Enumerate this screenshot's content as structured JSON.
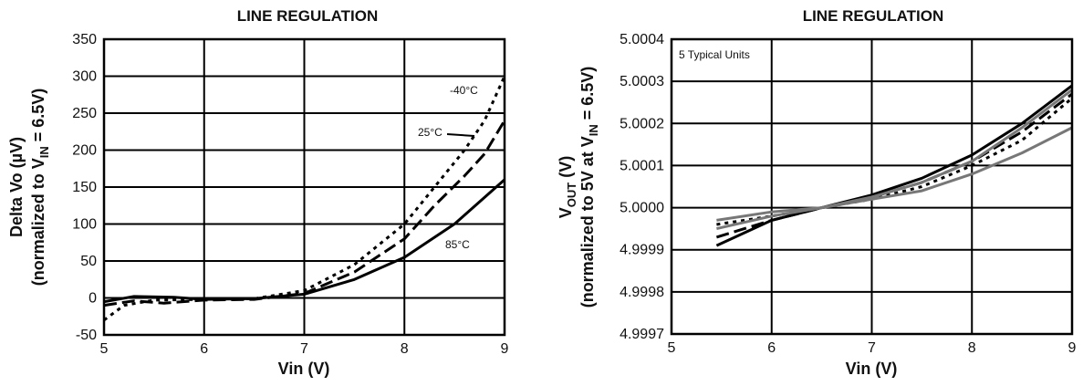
{
  "chart_data": [
    {
      "type": "line",
      "title": "LINE REGULATION",
      "xlabel": "Vin (V)",
      "ylabel_line1": "Delta Vo (µV)",
      "ylabel_line2_pre": "(normalized to V",
      "ylabel_line2_sub": "IN",
      "ylabel_line2_post": " = 6.5V)",
      "xlim": [
        5,
        9
      ],
      "ylim": [
        -50,
        350
      ],
      "xticks": [
        "5",
        "6",
        "7",
        "8",
        "9"
      ],
      "yticks": [
        "350",
        "300",
        "250",
        "200",
        "150",
        "100",
        "50",
        "0",
        "-50"
      ],
      "xtick_values": [
        5,
        6,
        7,
        8,
        9
      ],
      "ytick_values": [
        350,
        300,
        250,
        200,
        150,
        100,
        50,
        0,
        -50
      ],
      "grid": true,
      "annotations": [
        "-40°C",
        "25°C",
        "85°C"
      ],
      "series": [
        {
          "name": "-40°C",
          "style": "dotted",
          "x": [
            5.0,
            5.2,
            5.5,
            6.0,
            6.5,
            7.0,
            7.5,
            8.0,
            8.3,
            8.6,
            8.8,
            9.0
          ],
          "y": [
            -30,
            -10,
            -3,
            -2,
            -1,
            10,
            45,
            100,
            150,
            200,
            240,
            300
          ]
        },
        {
          "name": "25°C",
          "style": "dashed",
          "x": [
            5.0,
            5.3,
            5.6,
            6.0,
            6.5,
            7.0,
            7.5,
            8.0,
            8.3,
            8.6,
            8.8,
            9.0
          ],
          "y": [
            -10,
            -4,
            -7,
            -3,
            -2,
            6,
            35,
            80,
            125,
            165,
            195,
            240
          ]
        },
        {
          "name": "85°C",
          "style": "solid",
          "x": [
            5.0,
            5.3,
            5.7,
            6.0,
            6.5,
            7.0,
            7.5,
            8.0,
            8.5,
            9.0
          ],
          "y": [
            -5,
            2,
            1,
            -2,
            -1,
            5,
            25,
            55,
            100,
            160
          ]
        }
      ]
    },
    {
      "type": "line",
      "title": "LINE REGULATION",
      "xlabel": "Vin (V)",
      "ylabel_pre": "V",
      "ylabel_sub": "OUT",
      "ylabel_mid": " (V)",
      "ylabel_line2_pre": "(normalized to 5V at V",
      "ylabel_line2_sub": "IN",
      "ylabel_line2_post": " = 6.5V)",
      "xlim": [
        5,
        9
      ],
      "ylim": [
        4.9997,
        5.0004
      ],
      "xticks": [
        "5",
        "6",
        "7",
        "8",
        "9"
      ],
      "yticks": [
        "5.0004",
        "5.0003",
        "5.0002",
        "5.0001",
        "5.0000",
        "4.9999",
        "4.9998",
        "4.9997"
      ],
      "xtick_values": [
        5,
        6,
        7,
        8,
        9
      ],
      "ytick_values": [
        5.0004,
        5.0003,
        5.0002,
        5.0001,
        5.0,
        4.9999,
        4.9998,
        4.9997
      ],
      "grid": true,
      "annotations": [
        "5 Typical Units"
      ],
      "series": [
        {
          "style": "solid",
          "color": "#000000",
          "x": [
            5.45,
            6.0,
            6.5,
            7.0,
            7.5,
            8.0,
            8.5,
            9.0
          ],
          "y": [
            4.99991,
            4.99997,
            5.0,
            5.00003,
            5.00007,
            5.000125,
            5.0002,
            5.00029
          ]
        },
        {
          "style": "dashed",
          "color": "#000000",
          "x": [
            5.45,
            6.0,
            6.5,
            7.0,
            7.5,
            8.0,
            8.5,
            9.0
          ],
          "y": [
            4.99993,
            4.99997,
            5.0,
            5.000025,
            5.00006,
            5.00011,
            5.00018,
            5.00027
          ]
        },
        {
          "style": "dotted",
          "color": "#000000",
          "x": [
            5.45,
            6.0,
            6.5,
            7.0,
            7.5,
            8.0,
            8.5,
            9.0
          ],
          "y": [
            4.99996,
            4.99998,
            5.0,
            5.00002,
            5.00005,
            5.0001,
            5.00016,
            5.00026
          ]
        },
        {
          "style": "solid",
          "color": "#777777",
          "x": [
            5.45,
            6.0,
            6.5,
            7.0,
            7.5,
            8.0,
            8.5,
            9.0
          ],
          "y": [
            4.99995,
            4.99998,
            5.0,
            5.000025,
            5.00006,
            5.00011,
            5.00019,
            5.00028
          ]
        },
        {
          "style": "solid",
          "color": "#777777",
          "x": [
            5.45,
            6.0,
            6.5,
            7.0,
            7.5,
            8.0,
            8.5,
            9.0
          ],
          "y": [
            4.99997,
            4.99999,
            5.0,
            5.00002,
            5.00004,
            5.00008,
            5.00013,
            5.00019
          ]
        }
      ]
    }
  ]
}
